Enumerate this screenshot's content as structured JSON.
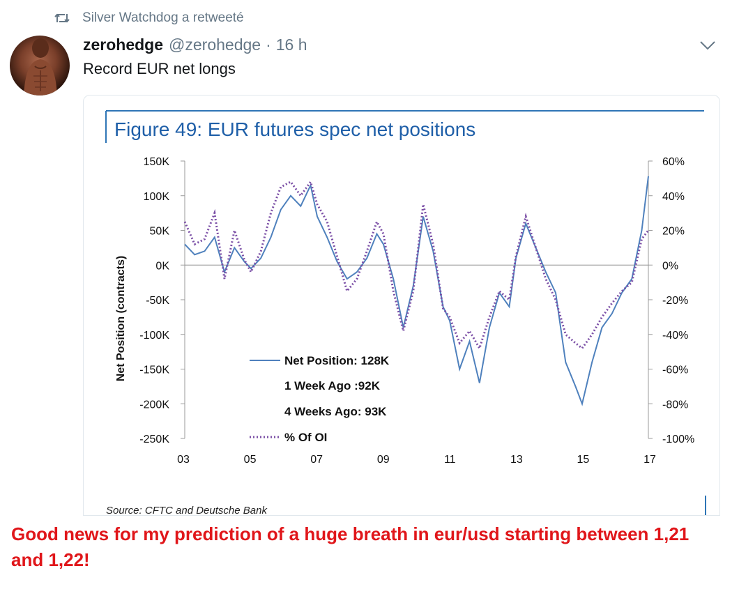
{
  "retweet": {
    "text": "Silver Watchdog a retweeté"
  },
  "tweet": {
    "display_name": "zerohedge",
    "handle": "@zerohedge",
    "separator": "·",
    "time": "16 h",
    "text": "Record EUR net longs"
  },
  "chart_data": {
    "type": "line",
    "title": "Figure 49: EUR futures spec net positions",
    "ylabel": "Net Position (contracts)",
    "xlabel": "",
    "x_ticks": [
      "03",
      "05",
      "07",
      "09",
      "11",
      "13",
      "15",
      "17"
    ],
    "y_left_ticks": [
      "150K",
      "100K",
      "50K",
      "0K",
      "-50K",
      "-100K",
      "-150K",
      "-200K",
      "-250K"
    ],
    "y_right_ticks": [
      "60%",
      "40%",
      "20%",
      "0%",
      "-20%",
      "-40%",
      "-60%",
      "-80%",
      "-100%"
    ],
    "ylim_left": [
      -250,
      150
    ],
    "ylim_right": [
      -100,
      60
    ],
    "xlim": [
      2003,
      2017
    ],
    "series": [
      {
        "name": "Net Position",
        "axis": "left",
        "units": "thousand contracts",
        "style": "solid",
        "color": "#4f81bd",
        "x": [
          2003.0,
          2003.3,
          2003.6,
          2003.9,
          2004.2,
          2004.5,
          2004.8,
          2005.0,
          2005.3,
          2005.6,
          2005.9,
          2006.2,
          2006.5,
          2006.8,
          2007.0,
          2007.3,
          2007.6,
          2007.9,
          2008.2,
          2008.5,
          2008.8,
          2009.0,
          2009.3,
          2009.6,
          2009.9,
          2010.2,
          2010.5,
          2010.8,
          2011.0,
          2011.3,
          2011.6,
          2011.9,
          2012.2,
          2012.5,
          2012.8,
          2013.0,
          2013.3,
          2013.6,
          2013.9,
          2014.2,
          2014.5,
          2014.8,
          2015.0,
          2015.3,
          2015.6,
          2015.9,
          2016.2,
          2016.5,
          2016.8,
          2017.0
        ],
        "values": [
          30,
          15,
          20,
          40,
          -10,
          25,
          5,
          -5,
          10,
          40,
          80,
          100,
          85,
          115,
          70,
          40,
          5,
          -20,
          -10,
          10,
          45,
          30,
          -20,
          -90,
          -30,
          70,
          20,
          -60,
          -80,
          -150,
          -110,
          -170,
          -90,
          -40,
          -60,
          10,
          60,
          25,
          -10,
          -40,
          -140,
          -175,
          -200,
          -140,
          -90,
          -70,
          -40,
          -20,
          50,
          128
        ]
      },
      {
        "name": "% Of OI",
        "axis": "right",
        "units": "percent",
        "style": "dotted",
        "color": "#7b4fa6",
        "x": [
          2003.0,
          2003.3,
          2003.6,
          2003.9,
          2004.2,
          2004.5,
          2004.8,
          2005.0,
          2005.3,
          2005.6,
          2005.9,
          2006.2,
          2006.5,
          2006.8,
          2007.0,
          2007.3,
          2007.6,
          2007.9,
          2008.2,
          2008.5,
          2008.8,
          2009.0,
          2009.3,
          2009.6,
          2009.9,
          2010.2,
          2010.5,
          2010.8,
          2011.0,
          2011.3,
          2011.6,
          2011.9,
          2012.2,
          2012.5,
          2012.8,
          2013.0,
          2013.3,
          2013.6,
          2013.9,
          2014.2,
          2014.5,
          2014.8,
          2015.0,
          2015.3,
          2015.6,
          2015.9,
          2016.2,
          2016.5,
          2016.8,
          2017.0
        ],
        "values": [
          25,
          12,
          15,
          30,
          -8,
          20,
          3,
          -4,
          8,
          30,
          45,
          48,
          40,
          48,
          35,
          25,
          5,
          -15,
          -8,
          8,
          25,
          18,
          -15,
          -38,
          -15,
          35,
          12,
          -25,
          -30,
          -45,
          -38,
          -48,
          -30,
          -15,
          -20,
          5,
          28,
          10,
          -8,
          -20,
          -40,
          -45,
          -48,
          -40,
          -30,
          -22,
          -15,
          -10,
          15,
          20
        ]
      }
    ],
    "legend": {
      "position": "center-bottom",
      "entries": [
        "Net Position: 128K",
        "1 Week Ago :92K",
        "4 Weeks Ago: 93K",
        "% Of OI"
      ]
    },
    "zero_line": true,
    "source": "Source: CFTC and Deutsche Bank",
    "colors": {
      "title": "#1f5fa8",
      "accent_line": "#2e75b6"
    }
  },
  "caption": {
    "text": "Good news for my prediction of a huge breath in eur/usd starting between 1,21 and 1,22!",
    "color": "#e0161a"
  }
}
